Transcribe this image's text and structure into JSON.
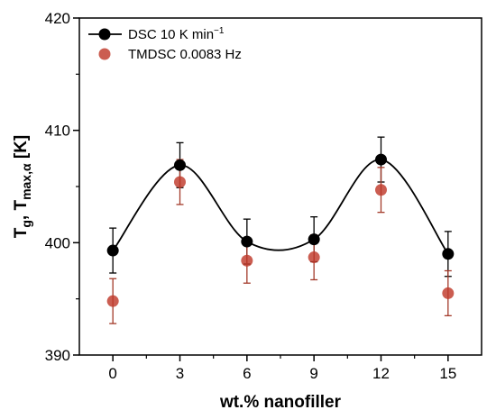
{
  "chart_data": {
    "type": "scatter",
    "x": [
      0,
      3,
      6,
      9,
      12,
      15
    ],
    "xticks": [
      "0",
      "3",
      "6",
      "9",
      "12",
      "15"
    ],
    "yticks": [
      "390",
      "400",
      "410",
      "420"
    ],
    "xlabel": "wt.% nanofiller",
    "ylabel_main": "T",
    "ylabel_sub1": "g",
    "ylabel_sep": ", T",
    "ylabel_sub2": "max,α",
    "ylabel_unit": " [K]",
    "xlim": [
      -1.5,
      16.5
    ],
    "ylim": [
      390,
      420
    ],
    "grid": false,
    "legend_position": "top-left",
    "series": [
      {
        "name": "DSC 10 K min⁻¹",
        "legend_label": "DSC 10 K min",
        "legend_sup": "−1",
        "color": "#000000",
        "values": [
          399.3,
          406.9,
          400.1,
          400.3,
          407.4,
          399.0
        ],
        "errors": [
          2.0,
          2.0,
          2.0,
          2.0,
          2.0,
          2.0
        ],
        "fit_line": true
      },
      {
        "name": "TMDSC 0.0083 Hz",
        "legend_label": "TMDSC 0.0083 Hz",
        "color": "#c0392b",
        "values": [
          394.8,
          405.4,
          398.4,
          398.7,
          404.7,
          395.5
        ],
        "errors": [
          2.0,
          2.0,
          2.0,
          2.0,
          2.0,
          2.0
        ],
        "fit_line": false
      }
    ]
  }
}
